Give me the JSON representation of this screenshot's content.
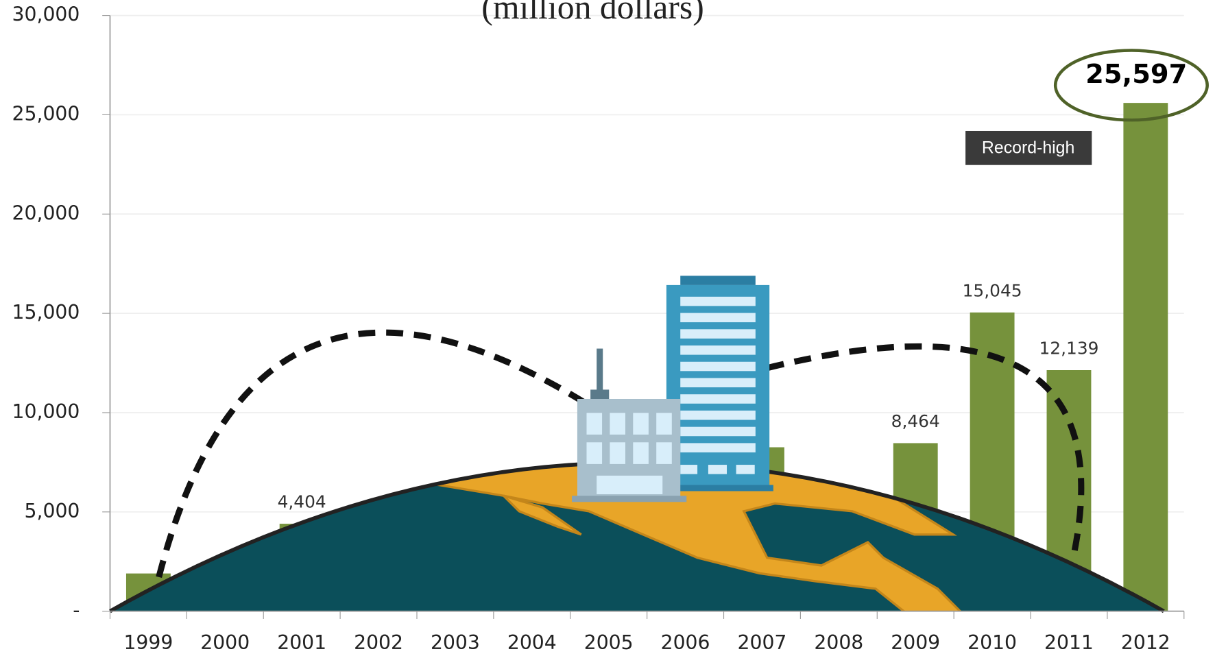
{
  "chart_data": {
    "type": "bar",
    "title": "(million dollars)",
    "categories": [
      "1999",
      "2000",
      "2001",
      "2002",
      "2003",
      "2004",
      "2005",
      "2006",
      "2007",
      "2008",
      "2009",
      "2010",
      "2011",
      "2012"
    ],
    "values": [
      1900,
      null,
      4404,
      null,
      null,
      null,
      null,
      null,
      8256,
      null,
      8464,
      15045,
      12139,
      25597
    ],
    "value_labels": [
      null,
      null,
      "4,404",
      null,
      null,
      null,
      null,
      null,
      null,
      null,
      "8,464",
      "15,045",
      "12,139",
      "25,597"
    ],
    "color": "#76923c",
    "ylim": [
      0,
      30000
    ],
    "yticks": [
      {
        "value": 0,
        "label": "-"
      },
      {
        "value": 5000,
        "label": "5,000"
      },
      {
        "value": 10000,
        "label": "10,000"
      },
      {
        "value": 15000,
        "label": "15,000"
      },
      {
        "value": 20000,
        "label": "20,000"
      },
      {
        "value": 25000,
        "label": "25,000"
      },
      {
        "value": 30000,
        "label": "30,000"
      }
    ],
    "grid": true,
    "annotations": [
      "Record-high"
    ]
  }
}
